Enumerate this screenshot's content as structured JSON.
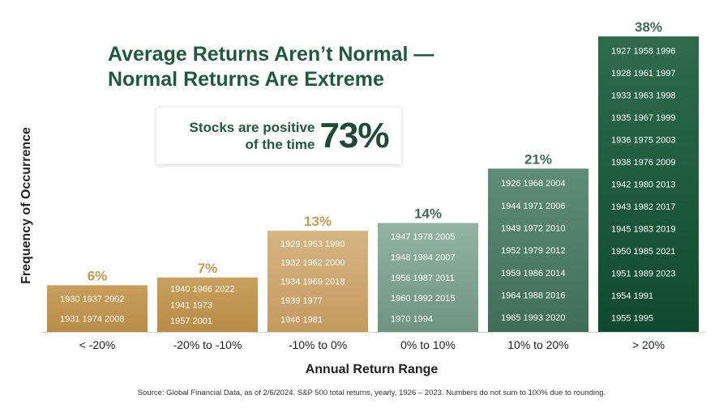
{
  "title_line1": "Average Returns Aren’t Normal —",
  "title_line2": "Normal Returns Are Extreme",
  "callout": {
    "line1": "Stocks are positive",
    "line2": "of the time",
    "value": "73%"
  },
  "source": "Source: Global Financial Data, as of 2/6/2024. S&P 500 total returns, yearly, 1926 – 2023. Numbers do not sum to 100% due to rounding.",
  "colors": {
    "title": "#1f5a3a",
    "negative_label": "#c49a55",
    "positive_label": "#3f6a55"
  },
  "chart_data": {
    "type": "bar",
    "xlabel": "Annual Return Range",
    "ylabel": "Frequency of Occurrence",
    "categories": [
      "< -20%",
      "-20% to -10%",
      "-10% to 0%",
      "0% to 10%",
      "10% to 20%",
      "> 20%"
    ],
    "values": [
      6,
      7,
      13,
      14,
      21,
      38
    ],
    "value_labels": [
      "6%",
      "7%",
      "13%",
      "14%",
      "21%",
      "38%"
    ],
    "ylim": [
      0,
      38
    ],
    "grid": false,
    "bar_colors": [
      [
        "#c99f5d",
        "#b98c47"
      ],
      [
        "#c99f5d",
        "#b98c47"
      ],
      [
        "#d6b583",
        "#c49a5f"
      ],
      [
        "#93b3a3",
        "#6f9483"
      ],
      [
        "#5f8d76",
        "#3f6d58"
      ],
      [
        "#2f6b4c",
        "#0f4a2e"
      ]
    ],
    "years": [
      [
        "1930 1937 2002",
        "1931 1974 2008"
      ],
      [
        "1940 1966 2022",
        "1941 1973",
        "1957 2001"
      ],
      [
        "1929 1953 1990",
        "1932 1962 2000",
        "1934 1969 2018",
        "1939 1977",
        "1946 1981"
      ],
      [
        "1947 1978 2005",
        "1948 1984 2007",
        "1956 1987 2011",
        "1960 1992 2015",
        "1970 1994"
      ],
      [
        "1926 1968 2004",
        "1944 1971 2006",
        "1949 1972 2010",
        "1952 1979 2012",
        "1959 1986 2014",
        "1964 1988 2016",
        "1965 1993 2020"
      ],
      [
        "1927 1958 1996",
        "1928 1961 1997",
        "1933 1963 1998",
        "1935 1967 1999",
        "1936 1975 2003",
        "1938 1976 2009",
        "1942 1980 2013",
        "1943 1982 2017",
        "1945 1983 2019",
        "1950 1985 2021",
        "1951 1989 2023",
        "1954 1991",
        "1955 1995"
      ]
    ]
  }
}
